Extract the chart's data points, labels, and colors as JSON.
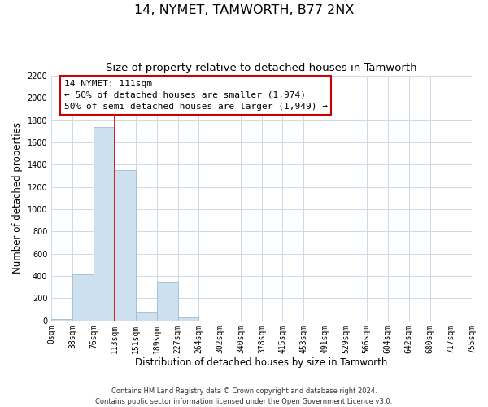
{
  "title": "14, NYMET, TAMWORTH, B77 2NX",
  "subtitle": "Size of property relative to detached houses in Tamworth",
  "xlabel": "Distribution of detached houses by size in Tamworth",
  "ylabel": "Number of detached properties",
  "bar_edges": [
    0,
    38,
    76,
    113,
    151,
    189,
    227,
    264,
    302,
    340,
    378,
    415,
    453,
    491,
    529,
    566,
    604,
    642,
    680,
    717,
    755
  ],
  "bar_values": [
    15,
    415,
    1740,
    1350,
    80,
    340,
    25,
    0,
    0,
    0,
    0,
    0,
    0,
    0,
    0,
    0,
    0,
    0,
    0,
    0
  ],
  "bar_color": "#cce0f0",
  "bar_edgecolor": "#9bbdd4",
  "vertical_line_x": 113,
  "vertical_line_color": "#cc0000",
  "ylim": [
    0,
    2200
  ],
  "yticks": [
    0,
    200,
    400,
    600,
    800,
    1000,
    1200,
    1400,
    1600,
    1800,
    2000,
    2200
  ],
  "annotation_title": "14 NYMET: 111sqm",
  "annotation_line1": "← 50% of detached houses are smaller (1,974)",
  "annotation_line2": "50% of semi-detached houses are larger (1,949) →",
  "annotation_box_color": "#ffffff",
  "annotation_box_edgecolor": "#cc0000",
  "footnote1": "Contains HM Land Registry data © Crown copyright and database right 2024.",
  "footnote2": "Contains public sector information licensed under the Open Government Licence v3.0.",
  "background_color": "#ffffff",
  "grid_color": "#ccd9e8",
  "title_fontsize": 11.5,
  "subtitle_fontsize": 9.5,
  "tick_fontsize": 7,
  "axis_label_fontsize": 8.5
}
